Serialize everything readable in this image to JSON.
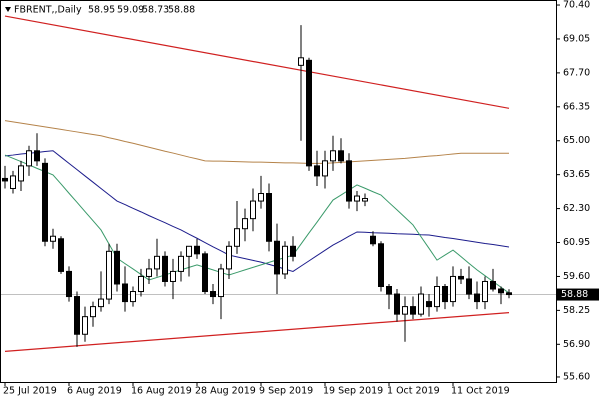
{
  "chart_data": {
    "type": "candlestick",
    "symbol": "FBRENT,,Daily",
    "categories": [
      "25 Jul 2019",
      null,
      null,
      null,
      null,
      null,
      null,
      null,
      "6 Aug 2019",
      null,
      null,
      null,
      null,
      null,
      null,
      null,
      "16 Aug 2019",
      null,
      null,
      null,
      null,
      null,
      null,
      null,
      "28 Aug 2019",
      null,
      null,
      null,
      null,
      null,
      null,
      null,
      "9 Sep 2019",
      null,
      null,
      null,
      null,
      null,
      null,
      null,
      "19 Sep 2019",
      null,
      null,
      null,
      null,
      null,
      null,
      null,
      "1 Oct 2019",
      null,
      null,
      null,
      null,
      null,
      null,
      null,
      "11 Oct 2019",
      null,
      null,
      null,
      null,
      null,
      null,
      null
    ],
    "open": [
      63.5,
      63.1,
      63.4,
      64.0,
      64.6,
      64.1,
      61.0,
      61.1,
      59.8,
      58.8,
      57.3,
      58.0,
      58.4,
      58.7,
      60.6,
      59.3,
      58.6,
      59.0,
      59.6,
      59.9,
      60.4,
      59.4,
      59.8,
      60.4,
      60.8,
      60.5,
      59.0,
      58.8,
      59.9,
      60.8,
      61.5,
      61.9,
      62.6,
      62.9,
      61.0,
      59.7,
      60.8,
      68.0,
      68.2,
      64.0,
      63.6,
      64.2,
      64.6,
      64.2,
      62.6,
      62.6,
      61.2,
      60.9,
      59.2,
      58.9,
      58.1,
      58.4,
      58.1,
      58.6,
      58.4,
      59.2,
      58.6,
      59.6,
      59.5,
      58.9,
      58.6,
      59.4,
      59.1,
      58.95
    ],
    "high": [
      64.0,
      63.8,
      64.2,
      64.8,
      65.3,
      64.3,
      61.5,
      61.2,
      60.0,
      59.0,
      58.4,
      58.6,
      59.8,
      60.9,
      60.9,
      60.0,
      59.2,
      59.9,
      60.3,
      61.1,
      60.6,
      60.3,
      60.6,
      60.8,
      61.1,
      60.6,
      59.3,
      60.1,
      61.0,
      62.6,
      62.3,
      63.1,
      63.6,
      63.3,
      61.7,
      61.0,
      61.2,
      69.6,
      68.3,
      64.6,
      64.6,
      65.2,
      65.1,
      64.5,
      63.0,
      62.9,
      61.4,
      61.0,
      59.3,
      59.1,
      58.8,
      58.8,
      59.2,
      58.9,
      59.6,
      59.3,
      60.0,
      59.9,
      60.0,
      59.4,
      59.6,
      59.9,
      59.2,
      59.09
    ],
    "low": [
      63.1,
      62.9,
      63.0,
      63.6,
      64.0,
      60.8,
      60.7,
      59.7,
      58.6,
      56.8,
      57.0,
      57.6,
      58.2,
      58.5,
      59.0,
      58.2,
      58.4,
      58.8,
      59.3,
      59.6,
      59.2,
      58.7,
      59.4,
      59.6,
      60.3,
      58.9,
      58.5,
      57.9,
      59.5,
      60.5,
      61.0,
      61.4,
      62.3,
      60.6,
      58.9,
      59.5,
      60.2,
      65.0,
      63.8,
      63.2,
      63.1,
      63.8,
      64.1,
      62.3,
      62.2,
      62.4,
      60.8,
      59.0,
      58.3,
      57.8,
      57.0,
      57.9,
      58.0,
      58.0,
      58.2,
      58.3,
      58.4,
      59.3,
      58.7,
      58.3,
      58.3,
      59.0,
      58.5,
      58.73
    ],
    "close": [
      63.4,
      63.6,
      64.0,
      64.6,
      64.2,
      61.0,
      61.2,
      59.8,
      58.8,
      57.3,
      58.0,
      58.4,
      58.7,
      60.6,
      59.3,
      58.6,
      59.0,
      59.6,
      59.9,
      60.4,
      59.4,
      59.8,
      60.4,
      60.8,
      60.5,
      59.0,
      58.8,
      59.9,
      60.8,
      61.5,
      61.9,
      62.6,
      62.9,
      61.0,
      59.7,
      60.8,
      60.4,
      68.3,
      64.0,
      63.6,
      64.2,
      64.6,
      64.2,
      62.6,
      62.8,
      62.7,
      60.9,
      59.2,
      58.9,
      58.1,
      58.4,
      58.1,
      58.9,
      58.4,
      59.2,
      58.6,
      59.6,
      59.5,
      58.9,
      58.6,
      59.4,
      59.1,
      58.95,
      58.88
    ],
    "up_color": "#ffffff",
    "down_color": "#000000",
    "lines": [
      {
        "color": "#b5834a",
        "values": [
          65.8,
          65.75,
          65.7,
          65.65,
          65.6,
          65.55,
          65.5,
          65.45,
          65.4,
          65.35,
          65.3,
          65.25,
          65.2,
          65.12,
          65.05,
          64.97,
          64.9,
          64.82,
          64.74,
          64.66,
          64.58,
          64.51,
          64.43,
          64.35,
          64.28,
          64.2,
          64.19,
          64.19,
          64.18,
          64.17,
          64.16,
          64.15,
          64.15,
          64.14,
          64.13,
          64.12,
          64.12,
          64.11,
          64.1,
          64.1,
          64.1,
          64.12,
          64.14,
          64.16,
          64.18,
          64.2,
          64.22,
          64.24,
          64.26,
          64.28,
          64.3,
          64.33,
          64.36,
          64.39,
          64.41,
          64.44,
          64.47,
          64.5,
          64.5,
          64.5,
          64.5,
          64.5,
          64.5,
          64.5
        ]
      },
      {
        "color": "#1c1c8c",
        "values": [
          64.4,
          64.43,
          64.47,
          64.5,
          64.53,
          64.57,
          64.6,
          64.35,
          64.1,
          63.85,
          63.6,
          63.35,
          63.1,
          62.85,
          62.6,
          62.46,
          62.31,
          62.17,
          62.02,
          61.88,
          61.74,
          61.59,
          61.45,
          61.28,
          61.12,
          60.95,
          60.78,
          60.62,
          60.45,
          60.38,
          60.31,
          60.24,
          60.17,
          60.08,
          59.99,
          59.89,
          59.8,
          60.01,
          60.22,
          60.43,
          60.64,
          60.85,
          61.02,
          61.2,
          61.37,
          61.36,
          61.34,
          61.33,
          61.32,
          61.3,
          61.29,
          61.28,
          61.26,
          61.25,
          61.2,
          61.15,
          61.11,
          61.06,
          61.01,
          60.96,
          60.91,
          60.87,
          60.82,
          60.77
        ]
      },
      {
        "color": "#3a9a6a",
        "values": [
          64.43,
          64.3,
          64.17,
          64.04,
          63.9,
          63.77,
          63.64,
          63.28,
          62.91,
          62.55,
          62.18,
          61.82,
          61.45,
          60.89,
          60.33,
          60.11,
          59.9,
          59.68,
          59.46,
          59.56,
          59.66,
          59.76,
          59.86,
          59.96,
          60.06,
          59.96,
          59.86,
          59.76,
          59.66,
          59.76,
          59.86,
          59.96,
          60.06,
          60.16,
          60.26,
          60.35,
          60.45,
          60.89,
          61.33,
          61.76,
          62.2,
          62.64,
          62.84,
          63.04,
          63.24,
          63.11,
          62.97,
          62.84,
          62.54,
          62.25,
          61.95,
          61.65,
          61.18,
          60.72,
          60.25,
          60.45,
          60.65,
          60.39,
          60.12,
          59.86,
          59.63,
          59.4,
          59.17,
          58.94
        ]
      }
    ],
    "trendlines": [
      {
        "color": "#d02020",
        "x": [
          0,
          63
        ],
        "values": [
          69.96,
          66.29
        ]
      },
      {
        "color": "#d02020",
        "x": [
          0,
          63
        ],
        "values": [
          56.62,
          58.16
        ]
      }
    ],
    "ylim": [
      55.4,
      70.6
    ],
    "yticks": [
      {
        "value": 70.4,
        "label": "70.40"
      },
      69.05,
      {
        "value": 67.7,
        "label": "67.70"
      },
      66.35,
      {
        "value": 65,
        "label": "65.00"
      },
      63.65,
      {
        "value": 62.3,
        "label": "62.30"
      },
      60.95,
      {
        "value": 59.6,
        "label": "59.60"
      },
      58.25,
      {
        "value": 56.9,
        "label": "56.90"
      },
      {
        "value": 55.6,
        "label": "55.60"
      }
    ],
    "grid": false
  }
}
